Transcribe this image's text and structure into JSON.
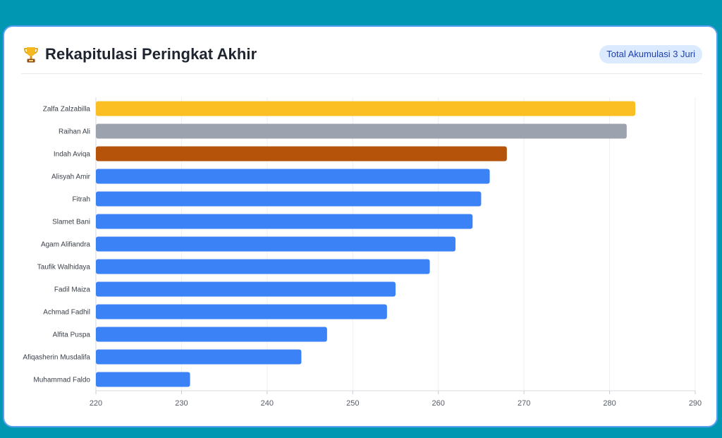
{
  "header": {
    "title": "Rekapitulasi Peringkat Akhir",
    "badge": "Total Akumulasi 3 Juri",
    "icon": "trophy-icon"
  },
  "chart_data": {
    "type": "bar",
    "orientation": "horizontal",
    "categories": [
      "Zalfa Zalzabilla",
      "Raihan Ali",
      "Indah Aviqa",
      "Alisyah Amir",
      "Fitrah",
      "Slamet Bani",
      "Agam Alifiandra",
      "Taufik Walhidaya",
      "Fadil Maiza",
      "Achmad Fadhil",
      "Alfita Puspa",
      "Afiqasherin Musdalifa",
      "Muhammad Faldo"
    ],
    "values": [
      283,
      282,
      268,
      266,
      265,
      264,
      262,
      259,
      255,
      254,
      247,
      244,
      231
    ],
    "colors": [
      "#fbbf24",
      "#9ca3af",
      "#b45309",
      "#3b82f6",
      "#3b82f6",
      "#3b82f6",
      "#3b82f6",
      "#3b82f6",
      "#3b82f6",
      "#3b82f6",
      "#3b82f6",
      "#3b82f6",
      "#3b82f6"
    ],
    "xlim": [
      220,
      290
    ],
    "xticks": [
      220,
      230,
      240,
      250,
      260,
      270,
      280,
      290
    ],
    "grid": true
  }
}
